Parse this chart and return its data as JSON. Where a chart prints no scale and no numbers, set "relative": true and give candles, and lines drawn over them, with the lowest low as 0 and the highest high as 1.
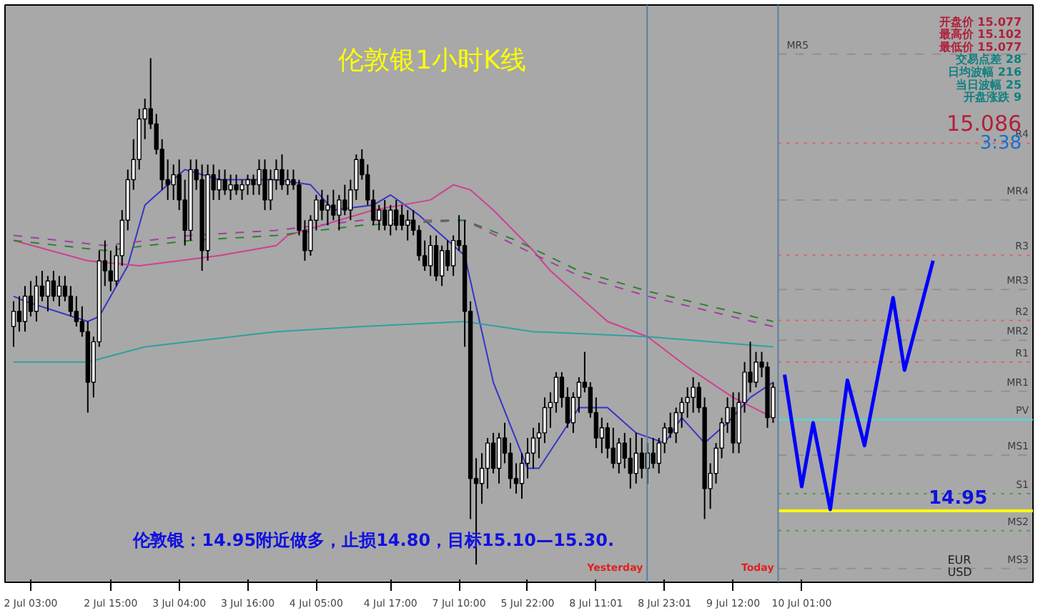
{
  "chart_data": {
    "type": "candlestick",
    "relative": true,
    "title": "伦敦银1小时K线",
    "annotations": [
      "伦敦银：14.95附近做多，止损14.80，目标15.10—15.30.",
      "开盘价 15.077",
      "最高价 15.102",
      "最低价 15.077",
      "交易点差 28",
      "日均波幅 216",
      "当日波幅 25",
      "开盘涨跌 9",
      "15.086",
      "3:38",
      "EUR",
      "USD",
      "14.95",
      "Yesterday",
      "Today"
    ],
    "categories": [
      null,
      null,
      null,
      "2 Jul 03:00",
      null,
      null,
      null,
      null,
      null,
      null,
      null,
      null,
      null,
      null,
      null,
      null,
      null,
      "2 Jul 15:00",
      null,
      null,
      null,
      null,
      null,
      null,
      null,
      null,
      null,
      null,
      null,
      "3 Jul 04:00",
      null,
      null,
      null,
      null,
      null,
      null,
      null,
      null,
      null,
      null,
      null,
      "3 Jul 16:00",
      null,
      null,
      null,
      null,
      null,
      null,
      null,
      null,
      null,
      null,
      null,
      "4 Jul 05:00",
      null,
      null,
      null,
      null,
      null,
      null,
      null,
      null,
      null,
      null,
      null,
      null,
      "4 Jul 17:00",
      null,
      null,
      null,
      null,
      null,
      null,
      null,
      null,
      null,
      null,
      null,
      "7 Jul 10:00",
      null,
      null,
      null,
      null,
      null,
      null,
      null,
      null,
      null,
      null,
      null,
      "5 Jul 22:00",
      null,
      null,
      null,
      null,
      null,
      null,
      null,
      null,
      null,
      null,
      null,
      "8 Jul 11:01",
      null,
      null,
      null,
      null,
      null,
      null,
      null,
      null,
      null,
      null,
      null,
      "8 Jul 23:01",
      null,
      null,
      null,
      null,
      null,
      null,
      null,
      null,
      null,
      null,
      null,
      "9 Jul 12:00",
      null,
      null,
      null,
      null,
      null,
      null,
      null,
      null,
      null,
      null,
      null,
      "10 Jul 01:00",
      null,
      null,
      null,
      null,
      null,
      null,
      null,
      null,
      null,
      null,
      null,
      null,
      null,
      null,
      null,
      null,
      null,
      null,
      null,
      null,
      null,
      null,
      null
    ],
    "ohlc": [
      [
        0.47,
        0.52,
        0.43,
        0.5
      ],
      [
        0.5,
        0.53,
        0.46,
        0.48
      ],
      [
        0.48,
        0.55,
        0.46,
        0.53
      ],
      [
        0.53,
        0.56,
        0.49,
        0.5
      ],
      [
        0.5,
        0.57,
        0.48,
        0.55
      ],
      [
        0.55,
        0.58,
        0.52,
        0.53
      ],
      [
        0.53,
        0.57,
        0.5,
        0.56
      ],
      [
        0.56,
        0.58,
        0.52,
        0.53
      ],
      [
        0.53,
        0.57,
        0.51,
        0.55
      ],
      [
        0.55,
        0.57,
        0.52,
        0.53
      ],
      [
        0.53,
        0.55,
        0.49,
        0.5
      ],
      [
        0.5,
        0.53,
        0.47,
        0.48
      ],
      [
        0.48,
        0.51,
        0.45,
        0.46
      ],
      [
        0.46,
        0.48,
        0.3,
        0.36
      ],
      [
        0.36,
        0.45,
        0.33,
        0.44
      ],
      [
        0.44,
        0.62,
        0.43,
        0.6
      ],
      [
        0.6,
        0.64,
        0.55,
        0.58
      ],
      [
        0.58,
        0.62,
        0.54,
        0.56
      ],
      [
        0.56,
        0.63,
        0.55,
        0.61
      ],
      [
        0.61,
        0.7,
        0.59,
        0.68
      ],
      [
        0.68,
        0.78,
        0.66,
        0.76
      ],
      [
        0.76,
        0.84,
        0.74,
        0.8
      ],
      [
        0.8,
        0.9,
        0.78,
        0.88
      ],
      [
        0.88,
        0.92,
        0.84,
        0.9
      ],
      [
        0.9,
        1.0,
        0.86,
        0.87
      ],
      [
        0.87,
        0.89,
        0.81,
        0.82
      ],
      [
        0.82,
        0.84,
        0.74,
        0.76
      ],
      [
        0.76,
        0.8,
        0.72,
        0.75
      ],
      [
        0.75,
        0.79,
        0.72,
        0.77
      ],
      [
        0.77,
        0.8,
        0.7,
        0.72
      ],
      [
        0.72,
        0.76,
        0.63,
        0.66
      ],
      [
        0.66,
        0.8,
        0.64,
        0.78
      ],
      [
        0.78,
        0.8,
        0.74,
        0.76
      ],
      [
        0.76,
        0.79,
        0.58,
        0.62
      ],
      [
        0.62,
        0.79,
        0.6,
        0.77
      ],
      [
        0.77,
        0.79,
        0.72,
        0.74
      ],
      [
        0.74,
        0.78,
        0.72,
        0.76
      ],
      [
        0.76,
        0.78,
        0.73,
        0.74
      ],
      [
        0.74,
        0.77,
        0.72,
        0.75
      ],
      [
        0.75,
        0.77,
        0.73,
        0.74
      ],
      [
        0.74,
        0.76,
        0.72,
        0.75
      ],
      [
        0.75,
        0.77,
        0.73,
        0.76
      ],
      [
        0.76,
        0.77,
        0.73,
        0.75
      ],
      [
        0.75,
        0.8,
        0.73,
        0.78
      ],
      [
        0.78,
        0.8,
        0.7,
        0.72
      ],
      [
        0.72,
        0.78,
        0.7,
        0.76
      ],
      [
        0.76,
        0.8,
        0.74,
        0.78
      ],
      [
        0.78,
        0.81,
        0.74,
        0.75
      ],
      [
        0.75,
        0.78,
        0.73,
        0.76
      ],
      [
        0.76,
        0.78,
        0.74,
        0.75
      ],
      [
        0.75,
        0.76,
        0.65,
        0.66
      ],
      [
        0.66,
        0.68,
        0.6,
        0.62
      ],
      [
        0.62,
        0.69,
        0.61,
        0.68
      ],
      [
        0.68,
        0.73,
        0.66,
        0.72
      ],
      [
        0.72,
        0.74,
        0.68,
        0.7
      ],
      [
        0.7,
        0.73,
        0.67,
        0.71
      ],
      [
        0.71,
        0.74,
        0.68,
        0.69
      ],
      [
        0.69,
        0.73,
        0.66,
        0.72
      ],
      [
        0.72,
        0.75,
        0.69,
        0.7
      ],
      [
        0.7,
        0.76,
        0.68,
        0.74
      ],
      [
        0.74,
        0.81,
        0.72,
        0.8
      ],
      [
        0.8,
        0.82,
        0.76,
        0.77
      ],
      [
        0.77,
        0.79,
        0.71,
        0.72
      ],
      [
        0.72,
        0.74,
        0.67,
        0.68
      ],
      [
        0.68,
        0.71,
        0.66,
        0.7
      ],
      [
        0.7,
        0.72,
        0.66,
        0.67
      ],
      [
        0.67,
        0.71,
        0.65,
        0.7
      ],
      [
        0.7,
        0.72,
        0.66,
        0.67
      ],
      [
        0.69,
        0.71,
        0.66,
        0.67
      ],
      [
        0.67,
        0.7,
        0.64,
        0.68
      ],
      [
        0.68,
        0.7,
        0.65,
        0.66
      ],
      [
        0.66,
        0.67,
        0.6,
        0.61
      ],
      [
        0.61,
        0.64,
        0.58,
        0.59
      ],
      [
        0.59,
        0.65,
        0.57,
        0.63
      ],
      [
        0.63,
        0.65,
        0.56,
        0.57
      ],
      [
        0.57,
        0.63,
        0.55,
        0.62
      ],
      [
        0.62,
        0.64,
        0.58,
        0.59
      ],
      [
        0.59,
        0.65,
        0.57,
        0.64
      ],
      [
        0.64,
        0.69,
        0.62,
        0.63
      ],
      [
        0.63,
        0.68,
        0.43,
        0.5
      ],
      [
        0.5,
        0.52,
        0.09,
        0.17
      ],
      [
        0.17,
        0.21,
        0.0,
        0.16
      ],
      [
        0.16,
        0.22,
        0.12,
        0.19
      ],
      [
        0.19,
        0.25,
        0.15,
        0.24
      ],
      [
        0.24,
        0.26,
        0.18,
        0.19
      ],
      [
        0.19,
        0.26,
        0.16,
        0.25
      ],
      [
        0.25,
        0.28,
        0.2,
        0.22
      ],
      [
        0.22,
        0.24,
        0.15,
        0.17
      ],
      [
        0.17,
        0.2,
        0.14,
        0.16
      ],
      [
        0.16,
        0.22,
        0.13,
        0.2
      ],
      [
        0.2,
        0.25,
        0.17,
        0.22
      ],
      [
        0.22,
        0.27,
        0.19,
        0.25
      ],
      [
        0.25,
        0.28,
        0.21,
        0.26
      ],
      [
        0.26,
        0.33,
        0.24,
        0.31
      ],
      [
        0.31,
        0.34,
        0.27,
        0.32
      ],
      [
        0.32,
        0.38,
        0.3,
        0.37
      ],
      [
        0.37,
        0.38,
        0.31,
        0.33
      ],
      [
        0.33,
        0.35,
        0.27,
        0.28
      ],
      [
        0.28,
        0.34,
        0.26,
        0.33
      ],
      [
        0.33,
        0.37,
        0.3,
        0.36
      ],
      [
        0.36,
        0.42,
        0.34,
        0.35
      ],
      [
        0.35,
        0.36,
        0.29,
        0.3
      ],
      [
        0.3,
        0.33,
        0.23,
        0.25
      ],
      [
        0.25,
        0.29,
        0.22,
        0.27
      ],
      [
        0.27,
        0.28,
        0.21,
        0.23
      ],
      [
        0.23,
        0.27,
        0.19,
        0.2
      ],
      [
        0.2,
        0.25,
        0.18,
        0.24
      ],
      [
        0.24,
        0.26,
        0.19,
        0.21
      ],
      [
        0.21,
        0.25,
        0.15,
        0.18
      ],
      [
        0.18,
        0.26,
        0.16,
        0.22
      ],
      [
        0.22,
        0.25,
        0.17,
        0.19
      ],
      [
        0.19,
        0.24,
        0.16,
        0.22
      ],
      [
        0.22,
        0.25,
        0.19,
        0.2
      ],
      [
        0.2,
        0.25,
        0.18,
        0.24
      ],
      [
        0.24,
        0.28,
        0.22,
        0.27
      ],
      [
        0.27,
        0.3,
        0.25,
        0.26
      ],
      [
        0.26,
        0.31,
        0.24,
        0.3
      ],
      [
        0.3,
        0.33,
        0.27,
        0.32
      ],
      [
        0.32,
        0.35,
        0.29,
        0.33
      ],
      [
        0.33,
        0.37,
        0.3,
        0.35
      ],
      [
        0.35,
        0.36,
        0.3,
        0.31
      ],
      [
        0.31,
        0.33,
        0.09,
        0.15
      ],
      [
        0.15,
        0.2,
        0.11,
        0.18
      ],
      [
        0.18,
        0.24,
        0.16,
        0.23
      ],
      [
        0.23,
        0.29,
        0.21,
        0.28
      ],
      [
        0.28,
        0.33,
        0.26,
        0.31
      ],
      [
        0.31,
        0.34,
        0.22,
        0.24
      ],
      [
        0.24,
        0.34,
        0.22,
        0.32
      ],
      [
        0.32,
        0.4,
        0.3,
        0.38
      ],
      [
        0.38,
        0.44,
        0.34,
        0.36
      ],
      [
        0.36,
        0.42,
        0.35,
        0.4
      ],
      [
        0.4,
        0.42,
        0.37,
        0.39
      ],
      [
        0.39,
        0.4,
        0.27,
        0.29
      ],
      [
        0.29,
        0.36,
        0.28,
        0.35
      ],
      null,
      null,
      null,
      null,
      null,
      null,
      null,
      null,
      null,
      null,
      null,
      null,
      null,
      null,
      null,
      null,
      null,
      null,
      null,
      null,
      null,
      null,
      null,
      null,
      null,
      null,
      null,
      null
    ],
    "series": [
      {
        "type": "line",
        "color": "#3535c8",
        "values": [
          0.53,
          null,
          0.52,
          null,
          null,
          null,
          null,
          null,
          null,
          null,
          null,
          null,
          null,
          0.48,
          null,
          0.49,
          null,
          null,
          null,
          null,
          0.59,
          null,
          null,
          0.71,
          null,
          null,
          null,
          0.75,
          null,
          null,
          0.78,
          null,
          null,
          null,
          null,
          null,
          0.76,
          null,
          null,
          null,
          null,
          null,
          null,
          null,
          null,
          null,
          0.76,
          null,
          null,
          null,
          null,
          null,
          0.75,
          null,
          null,
          null,
          0.7,
          null,
          null,
          null,
          null,
          null,
          null,
          0.71,
          null,
          null,
          0.73,
          null,
          null,
          null,
          null,
          0.69,
          null,
          null,
          null,
          null,
          0.64,
          null,
          null,
          0.61,
          null,
          null,
          null,
          null,
          0.36,
          null,
          null,
          null,
          null,
          null,
          0.19,
          null,
          0.19,
          null,
          null,
          null,
          null,
          null,
          null,
          0.31,
          null,
          null,
          null,
          null,
          0.31,
          null,
          null,
          null,
          null,
          0.26,
          null,
          null,
          null,
          null,
          0.24,
          null,
          null,
          0.29,
          null,
          null,
          null,
          0.24,
          null,
          null,
          null,
          0.28,
          null,
          null,
          null,
          0.33,
          null,
          null,
          null,
          0.36,
          null,
          null,
          null,
          null,
          null,
          null,
          null,
          null,
          null,
          null,
          null,
          null,
          null,
          null,
          null,
          null,
          null,
          null,
          null,
          null,
          null,
          null,
          null,
          null,
          null,
          null,
          null,
          null
        ]
      },
      {
        "type": "line",
        "color": "#d04090",
        "values": [
          0.64,
          null,
          null,
          null,
          null,
          null,
          null,
          null,
          null,
          null,
          null,
          null,
          null,
          0.6,
          null,
          null,
          null,
          null,
          null,
          null,
          null,
          null,
          0.59,
          null,
          null,
          null,
          null,
          null,
          null,
          null,
          null,
          null,
          null,
          null,
          null,
          null,
          0.61,
          null,
          null,
          null,
          null,
          null,
          null,
          null,
          null,
          null,
          0.63,
          null,
          0.65,
          null,
          null,
          null,
          null,
          null,
          null,
          null,
          null,
          null,
          null,
          null,
          null,
          null,
          null,
          0.7,
          null,
          null,
          null,
          null,
          null,
          null,
          null,
          null,
          null,
          0.72,
          null,
          null,
          null,
          0.75,
          null,
          null,
          0.74,
          null,
          null,
          null,
          0.7,
          null,
          null,
          null,
          null,
          null,
          null,
          0.62,
          null,
          null,
          0.58,
          null,
          null,
          null,
          null,
          null,
          null,
          null,
          null,
          null,
          0.48,
          null,
          null,
          null,
          null,
          null,
          null,
          0.45,
          null,
          null,
          null,
          null,
          null,
          null,
          0.39,
          null,
          null,
          null,
          null,
          null,
          null,
          null,
          0.33,
          null,
          null,
          null,
          null,
          null,
          null,
          0.29,
          null,
          null,
          null,
          null,
          null,
          null,
          null,
          null,
          null,
          null,
          null,
          null,
          null,
          null,
          null,
          null,
          null,
          null,
          null,
          null,
          null,
          null,
          null,
          null,
          null,
          null,
          null,
          null
        ]
      },
      {
        "type": "line",
        "color": "#30a0a0",
        "values": [
          0.4,
          null,
          null,
          null,
          null,
          null,
          null,
          null,
          null,
          null,
          null,
          null,
          null,
          0.4,
          null,
          null,
          null,
          null,
          null,
          null,
          null,
          null,
          null,
          0.43,
          null,
          null,
          null,
          null,
          null,
          null,
          null,
          null,
          null,
          null,
          null,
          null,
          null,
          null,
          null,
          null,
          null,
          null,
          null,
          null,
          null,
          null,
          0.46,
          null,
          null,
          null,
          null,
          null,
          null,
          null,
          null,
          null,
          null,
          null,
          null,
          null,
          null,
          0.47,
          null,
          null,
          null,
          null,
          null,
          null,
          null,
          null,
          null,
          null,
          null,
          null,
          null,
          null,
          null,
          null,
          null,
          0.48,
          null,
          null,
          null,
          null,
          null,
          null,
          null,
          null,
          null,
          null,
          null,
          0.46,
          null,
          null,
          null,
          null,
          null,
          null,
          null,
          null,
          null,
          null,
          null,
          null,
          null,
          null,
          null,
          null,
          null,
          null,
          null,
          0.45,
          null,
          null,
          null,
          null,
          null,
          null,
          null,
          null,
          null,
          null,
          null,
          null,
          null,
          null,
          null,
          null,
          null,
          null,
          null,
          null,
          null,
          0.43,
          null,
          null,
          null,
          null,
          null,
          null,
          null,
          null,
          null,
          null,
          null,
          null,
          null,
          null,
          null,
          null,
          null,
          null,
          null,
          null,
          null,
          null,
          null,
          null,
          null,
          null,
          null,
          null
        ]
      },
      {
        "type": "line",
        "color": "#a040a0",
        "line_style": "dashed",
        "values": [
          0.65,
          null,
          null,
          null,
          null,
          null,
          null,
          null,
          null,
          null,
          null,
          null,
          null,
          null,
          null,
          null,
          0.63,
          null,
          null,
          null,
          null,
          null,
          null,
          null,
          null,
          null,
          null,
          null,
          null,
          null,
          null,
          0.65,
          null,
          null,
          null,
          null,
          null,
          null,
          null,
          null,
          null,
          null,
          null,
          null,
          null,
          null,
          0.66,
          null,
          null,
          null,
          null,
          null,
          null,
          null,
          null,
          null,
          null,
          null,
          null,
          null,
          null,
          0.68,
          null,
          null,
          null,
          null,
          null,
          null,
          null,
          null,
          null,
          null,
          null,
          null,
          null,
          null,
          null,
          null,
          null,
          0.68,
          null,
          null,
          null,
          null,
          null,
          null,
          null,
          null,
          0.63,
          null,
          null,
          null,
          null,
          null,
          null,
          null,
          null,
          null,
          null,
          0.57,
          null,
          null,
          null,
          null,
          null,
          null,
          null,
          null,
          null,
          null,
          null,
          0.53,
          null,
          null,
          null,
          null,
          null,
          null,
          null,
          null,
          null,
          null,
          null,
          null,
          null,
          null,
          null,
          null,
          null,
          null,
          null,
          null,
          null,
          0.47,
          null,
          null,
          null,
          null,
          null,
          null,
          null,
          null,
          null,
          null,
          null,
          null,
          null,
          null,
          null,
          null,
          null,
          null,
          null,
          null,
          null,
          null,
          null,
          null,
          null,
          null,
          null,
          null
        ]
      },
      {
        "type": "line",
        "color": "#308030",
        "line_style": "dashed",
        "values": [
          0.64,
          null,
          null,
          null,
          null,
          null,
          null,
          null,
          null,
          null,
          null,
          null,
          null,
          null,
          null,
          null,
          0.62,
          null,
          null,
          null,
          null,
          null,
          null,
          null,
          null,
          null,
          null,
          null,
          null,
          null,
          null,
          0.64,
          null,
          null,
          null,
          null,
          null,
          null,
          null,
          null,
          null,
          null,
          null,
          null,
          null,
          null,
          0.65,
          null,
          null,
          null,
          null,
          null,
          null,
          null,
          null,
          null,
          null,
          null,
          null,
          null,
          null,
          0.67,
          null,
          null,
          null,
          null,
          null,
          null,
          null,
          null,
          null,
          null,
          null,
          null,
          null,
          null,
          null,
          null,
          null,
          0.68,
          null,
          null,
          null,
          null,
          null,
          null,
          null,
          null,
          0.64,
          null,
          null,
          null,
          null,
          null,
          null,
          null,
          null,
          null,
          null,
          0.58,
          null,
          null,
          null,
          null,
          null,
          null,
          null,
          null,
          null,
          null,
          null,
          0.54,
          null,
          null,
          null,
          null,
          null,
          null,
          null,
          null,
          null,
          null,
          null,
          null,
          null,
          null,
          null,
          null,
          null,
          null,
          null,
          null,
          null,
          0.48,
          null,
          null,
          null,
          null,
          null,
          null,
          null,
          null,
          null,
          null,
          null,
          null,
          null,
          null,
          null,
          null,
          null,
          null,
          null,
          null,
          null,
          null,
          null,
          null,
          null,
          null,
          null,
          null
        ]
      },
      {
        "type": "line",
        "color": "#0000ff",
        "values": [
          null,
          null,
          null,
          null,
          null,
          null,
          null,
          null,
          null,
          null,
          null,
          null,
          null,
          null,
          null,
          null,
          null,
          null,
          null,
          null,
          null,
          null,
          null,
          null,
          null,
          null,
          null,
          null,
          null,
          null,
          null,
          null,
          null,
          null,
          null,
          null,
          null,
          null,
          null,
          null,
          null,
          null,
          null,
          null,
          null,
          null,
          null,
          null,
          null,
          null,
          null,
          null,
          null,
          null,
          null,
          null,
          null,
          null,
          null,
          null,
          null,
          null,
          null,
          null,
          null,
          null,
          null,
          null,
          null,
          null,
          null,
          null,
          null,
          null,
          null,
          null,
          null,
          null,
          null,
          null,
          null,
          null,
          null,
          null,
          null,
          null,
          null,
          null,
          null,
          null,
          null,
          null,
          null,
          null,
          null,
          null,
          null,
          null,
          null,
          null,
          null,
          null,
          null,
          null,
          null,
          null,
          null,
          null,
          null,
          null,
          null,
          null,
          null,
          null,
          null,
          null,
          null,
          null,
          null,
          null,
          null,
          null,
          null,
          null,
          null,
          null,
          null,
          null,
          null,
          null,
          null,
          null,
          null,
          null,
          null,
          0.375,
          null,
          null,
          0.154,
          null,
          0.28,
          null,
          null,
          0.109,
          null,
          null,
          0.364,
          null,
          null,
          0.235,
          null,
          null,
          null,
          null,
          0.527,
          null,
          0.384,
          null,
          null,
          null,
          null,
          0.6
        ]
      }
    ],
    "ref_lines": [
      {
        "axis": "y",
        "value": 1.008,
        "label": "MR5",
        "color": "#909090",
        "line_style": "dashed"
      },
      {
        "axis": "y",
        "value": 0.832,
        "label": "R4",
        "color": "#e06060",
        "line_style": "dotted"
      },
      {
        "axis": "y",
        "value": 0.72,
        "label": "MR4",
        "color": "#909090",
        "line_style": "dashed"
      },
      {
        "axis": "y",
        "value": 0.611,
        "label": "R3",
        "color": "#e06060",
        "line_style": "dotted"
      },
      {
        "axis": "y",
        "value": 0.543,
        "label": "MR3",
        "color": "#909090",
        "line_style": "dashed"
      },
      {
        "axis": "y",
        "value": 0.482,
        "label": "R2",
        "color": "#e06060",
        "line_style": "dotted"
      },
      {
        "axis": "y",
        "value": 0.443,
        "label": "MR2",
        "color": "#909090",
        "line_style": "dashed"
      },
      {
        "axis": "y",
        "value": 0.4,
        "label": "R1",
        "color": "#e06060",
        "line_style": "dotted"
      },
      {
        "axis": "y",
        "value": 0.342,
        "label": "MR1",
        "color": "#909090",
        "line_style": "dashed"
      },
      {
        "axis": "y",
        "value": 0.286,
        "label": "PV",
        "color": "#40e0e0",
        "line_style": "solid"
      },
      {
        "axis": "y",
        "value": 0.216,
        "label": "MS1",
        "color": "#909090",
        "line_style": "dashed"
      },
      {
        "axis": "y",
        "value": 0.14,
        "label": "S1",
        "color": "#40a040",
        "line_style": "dotted"
      },
      {
        "axis": "y",
        "value": 0.106,
        "color": "#ffff00",
        "line_style": "solid"
      },
      {
        "axis": "y",
        "value": 0.067,
        "label": "MS2",
        "color": "#40a040",
        "line_style": "dotted"
      },
      {
        "axis": "y",
        "value": -0.008,
        "label": "MS3",
        "color": "#909090",
        "line_style": "dashed"
      }
    ],
    "tick_labels": "x",
    "grid": false
  }
}
